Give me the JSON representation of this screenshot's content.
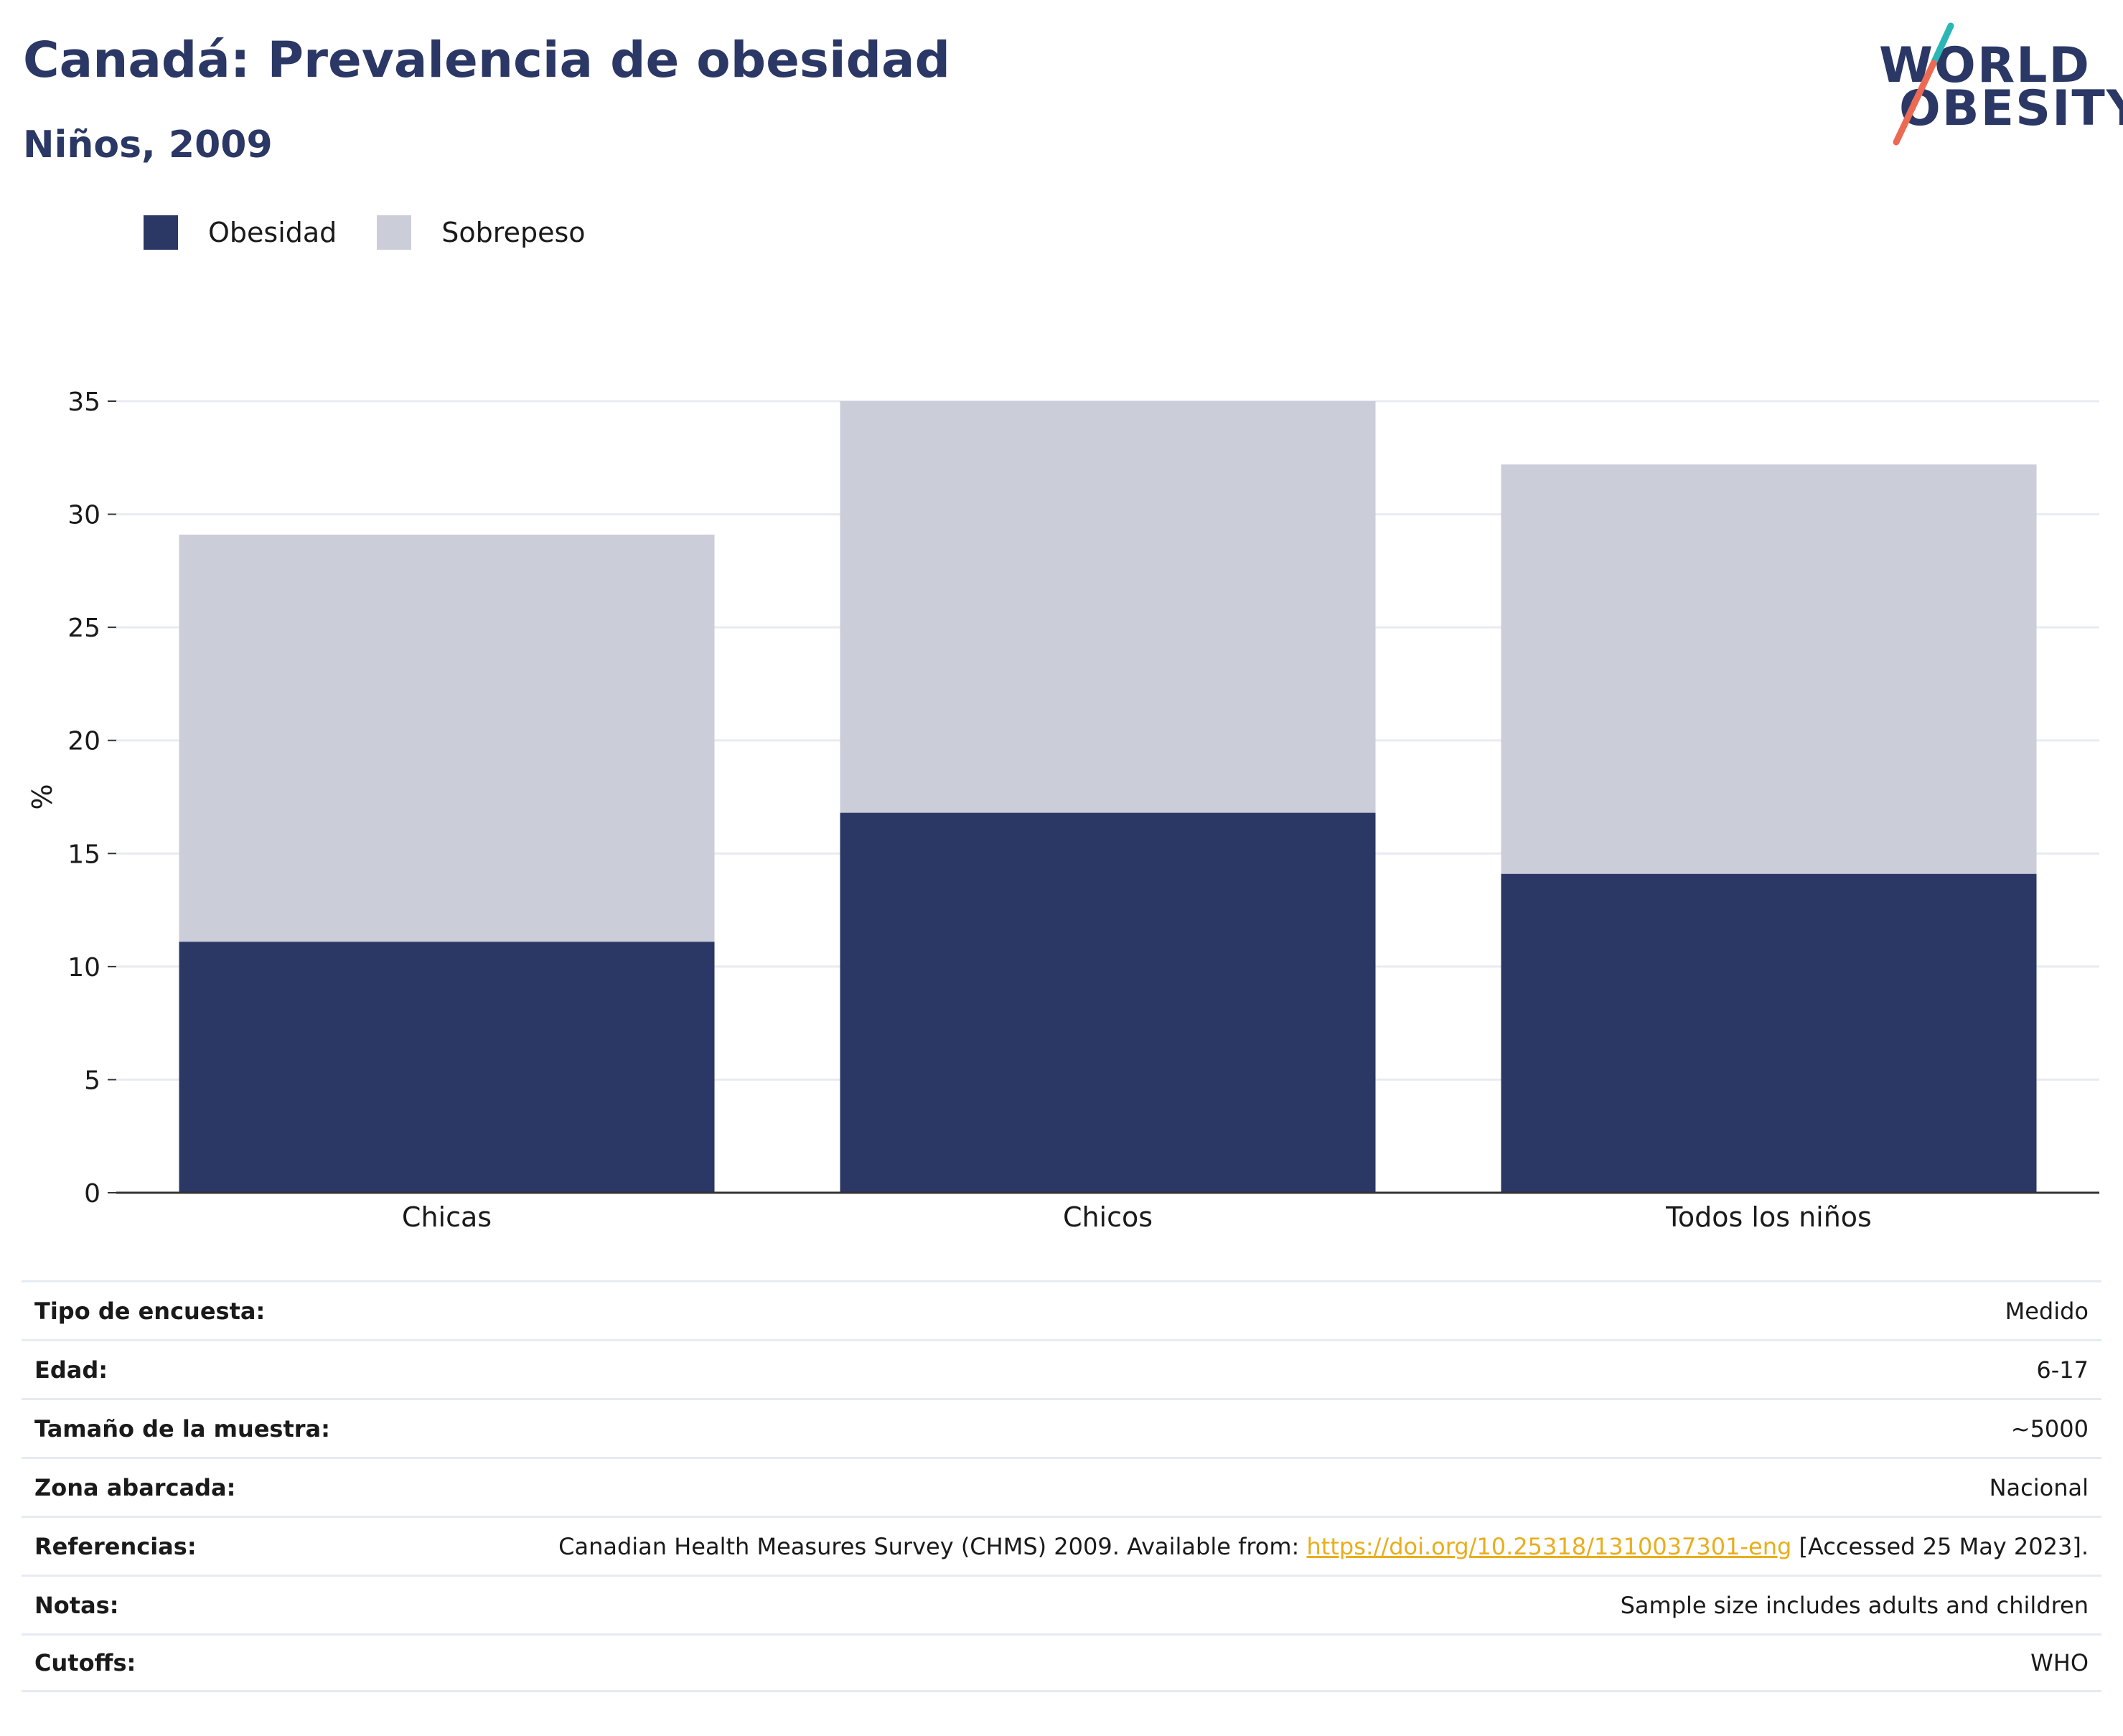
{
  "header": {
    "title": "Canadá: Prevalencia de obesidad",
    "subtitle": "Niños, 2009",
    "logo_text": [
      "WORLD",
      "OBESITY"
    ]
  },
  "colors": {
    "title": "#2b3765",
    "obesidad": "#2b3765",
    "sobrepeso": "#cbcdd8",
    "logo_teal": "#2ab7b6",
    "logo_coral": "#ec6a53",
    "link": "#e8ae1e"
  },
  "legend": {
    "items": [
      {
        "label": "Obesidad",
        "color": "#2b3765"
      },
      {
        "label": "Sobrepeso",
        "color": "#cbcdd8"
      }
    ]
  },
  "chart_data": {
    "type": "bar",
    "stacked": true,
    "categories": [
      "Chicas",
      "Chicos",
      "Todos los niños"
    ],
    "series": [
      {
        "name": "Obesidad",
        "values": [
          11.1,
          16.8,
          14.1
        ],
        "color": "#2b3765"
      },
      {
        "name": "Sobrepeso",
        "values": [
          18.0,
          18.2,
          18.1
        ],
        "color": "#cbcdd8"
      }
    ],
    "ylabel": "%",
    "ylim": [
      0,
      35
    ],
    "yticks": [
      0,
      5,
      10,
      15,
      20,
      25,
      30,
      35
    ],
    "grid": true,
    "legend_position": "top-left"
  },
  "info_table": {
    "rows": [
      {
        "label": "Tipo de encuesta:",
        "value": "Medido"
      },
      {
        "label": "Edad:",
        "value": "6-17"
      },
      {
        "label": "Tamaño de la muestra:",
        "value": "~5000"
      },
      {
        "label": "Zona abarcada:",
        "value": "Nacional"
      },
      {
        "label": "Referencias:",
        "value_pre": "Canadian Health Measures Survey (CHMS) 2009. Available from: ",
        "link": "https://doi.org/10.25318/1310037301-eng",
        "value_post": " [Accessed 25 May 2023]."
      },
      {
        "label": "Notas:",
        "value": "Sample size includes adults and children"
      },
      {
        "label": "Cutoffs:",
        "value": "WHO"
      }
    ]
  }
}
